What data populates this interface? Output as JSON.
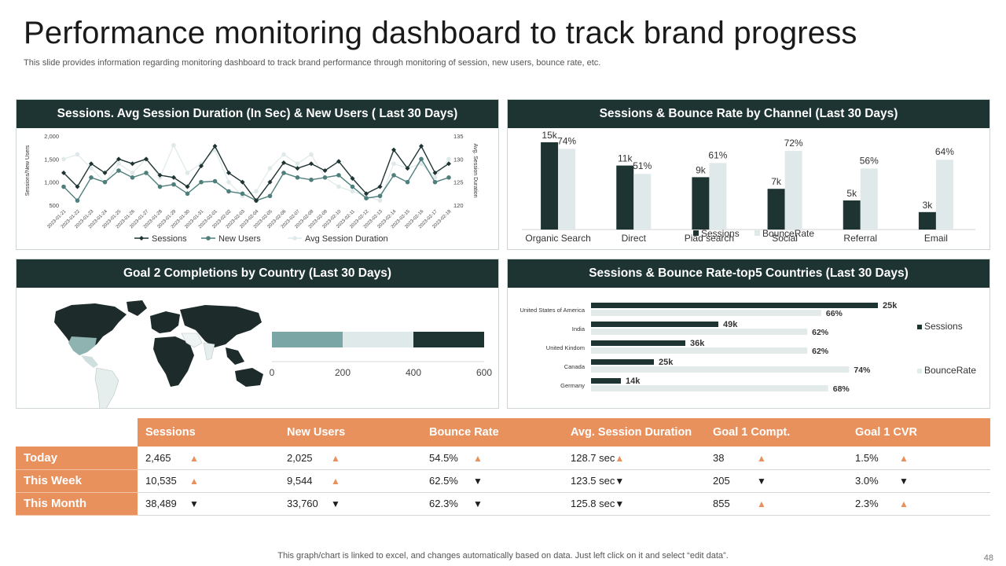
{
  "header": {
    "title": "Performance monitoring dashboard to track brand progress",
    "subtitle": "This slide provides information regarding monitoring dashboard to track brand performance through monitoring of session, new users, bounce rate, etc."
  },
  "panels": {
    "sessions_trend": "Sessions.  Avg Session Duration (In Sec) & New Users ( Last 30 Days)",
    "channel": "Sessions  & Bounce Rate by Channel (Last 30 Days)",
    "goal_country": "Goal 2 Completions by Country (Last 30 Days)",
    "top5": "Sessions  & Bounce Rate-top5 Countries (Last 30 Days)"
  },
  "colors": {
    "dark": "#1e3433",
    "teal": "#4f7f7c",
    "light": "#dfe9e9",
    "orange": "#e8915d",
    "slate": "#7aa7a6"
  },
  "chart_data": [
    {
      "type": "line",
      "title": "Sessions.  Avg Session Duration (In Sec) & New Users ( Last 30 Days)",
      "ylabel": "Sessions/New Users",
      "y2label": "Avg. Session Duration",
      "ylim": [
        500,
        2000
      ],
      "y2lim": [
        120,
        135
      ],
      "yticks": [
        "2,000",
        "1,500",
        "1,000",
        "500"
      ],
      "y2ticks": [
        "135",
        "130",
        "125",
        "120"
      ],
      "x": [
        "2023-01-21",
        "2023-01-22",
        "2023-01-23",
        "2023-01-24",
        "2023-01-25",
        "2023-01-26",
        "2023-01-27",
        "2023-01-28",
        "2023-01-29",
        "2023-01-30",
        "2023-01-31",
        "2023-02-01",
        "2023-02-02",
        "2023-02-03",
        "2023-02-04",
        "2023-02-05",
        "2023-02-06",
        "2023-02-07",
        "2023-02-08",
        "2023-02-09",
        "2023-02-10",
        "2023-02-11",
        "2023-02-12",
        "2023-02-13",
        "2023-02-14",
        "2023-02-15",
        "2023-02-16",
        "2023-02-17",
        "2023-02-18"
      ],
      "series": [
        {
          "name": "Sessions",
          "axis": "left",
          "values": [
            1200,
            900,
            1400,
            1200,
            1500,
            1400,
            1500,
            1150,
            1100,
            900,
            1350,
            1780,
            1200,
            1000,
            600,
            1000,
            1420,
            1300,
            1400,
            1250,
            1450,
            1080,
            750,
            900,
            1700,
            1300,
            1780,
            1200,
            1400
          ]
        },
        {
          "name": "New Users",
          "axis": "left",
          "values": [
            900,
            600,
            1100,
            1000,
            1250,
            1100,
            1200,
            900,
            950,
            750,
            1000,
            1020,
            800,
            750,
            600,
            700,
            1200,
            1100,
            1050,
            1100,
            1150,
            900,
            650,
            700,
            1150,
            1000,
            1500,
            1000,
            1100
          ]
        },
        {
          "name": "Avg Session Duration",
          "axis": "right",
          "values": [
            130,
            131,
            128,
            125,
            129,
            127,
            130,
            126,
            133,
            127,
            129,
            132,
            125,
            122,
            123,
            128,
            131,
            129,
            131,
            126,
            124,
            123,
            122,
            121,
            129,
            128,
            129,
            126,
            130
          ]
        }
      ],
      "legend": [
        "Sessions",
        "New Users",
        "Avg Session Duration"
      ]
    },
    {
      "type": "bar",
      "title": "Sessions  & Bounce Rate by Channel (Last 30 Days)",
      "categories": [
        "Organic Search",
        "Direct",
        "Piad search",
        "Social",
        "Referral",
        "Email"
      ],
      "series": [
        {
          "name": "Sessions",
          "values": [
            15,
            11,
            9,
            7,
            5,
            3
          ],
          "labels": [
            "15k",
            "11k",
            "9k",
            "7k",
            "5k",
            "3k"
          ]
        },
        {
          "name": "BounceRate",
          "values": [
            74,
            51,
            61,
            72,
            56,
            64
          ],
          "labels": [
            "74%",
            "51%",
            "61%",
            "72%",
            "56%",
            "64%"
          ]
        }
      ],
      "legend": [
        "Sessions",
        "BounceRate"
      ]
    },
    {
      "type": "bar",
      "orientation": "horizontal-stacked",
      "title": "Goal 2 Completions by Country (Last 30 Days)",
      "segments": [
        200,
        200,
        200
      ],
      "xlim": [
        0,
        600
      ],
      "xticks": [
        "0",
        "200",
        "400",
        "600"
      ]
    },
    {
      "type": "bar",
      "orientation": "horizontal",
      "title": "Sessions  & Bounce Rate-top5 Countries (Last 30 Days)",
      "categories": [
        "United States of America",
        "India",
        "United Kindom",
        "Canada",
        "Germany"
      ],
      "series": [
        {
          "name": "Sessions",
          "labels": [
            "25k",
            "49k",
            "36k",
            "25k",
            "14k"
          ]
        },
        {
          "name": "BounceRate",
          "values": [
            66,
            62,
            62,
            74,
            68
          ],
          "labels": [
            "66%",
            "62%",
            "62%",
            "74%",
            "68%"
          ]
        }
      ],
      "legend": [
        "Sessions",
        "BounceRate"
      ]
    }
  ],
  "kpi": {
    "columns": [
      "Sessions",
      "New Users",
      "Bounce Rate",
      "Avg. Session Duration",
      "Goal 1 Compt.",
      "Goal 1 CVR"
    ],
    "rows": [
      {
        "label": "Today",
        "cells": [
          {
            "value": "2,465",
            "trend": "up"
          },
          {
            "value": "2,025",
            "trend": "up"
          },
          {
            "value": "54.5%",
            "trend": "up"
          },
          {
            "value": "128.7 sec",
            "trend": "up"
          },
          {
            "value": "38",
            "trend": "up"
          },
          {
            "value": "1.5%",
            "trend": "up"
          }
        ]
      },
      {
        "label": "This Week",
        "cells": [
          {
            "value": "10,535",
            "trend": "up"
          },
          {
            "value": "9,544",
            "trend": "up"
          },
          {
            "value": "62.5%",
            "trend": "down"
          },
          {
            "value": "123.5 sec",
            "trend": "down"
          },
          {
            "value": "205",
            "trend": "down"
          },
          {
            "value": "3.0%",
            "trend": "down"
          }
        ]
      },
      {
        "label": "This Month",
        "cells": [
          {
            "value": "38,489",
            "trend": "down"
          },
          {
            "value": "33,760",
            "trend": "down"
          },
          {
            "value": "62.3%",
            "trend": "down"
          },
          {
            "value": "125.8 sec",
            "trend": "down"
          },
          {
            "value": "855",
            "trend": "up"
          },
          {
            "value": "2.3%",
            "trend": "up"
          }
        ]
      }
    ]
  },
  "footer": {
    "note": "This graph/chart is linked to excel,  and changes automatically based on data. Just left click on it and select “edit data”.",
    "page": "48"
  }
}
